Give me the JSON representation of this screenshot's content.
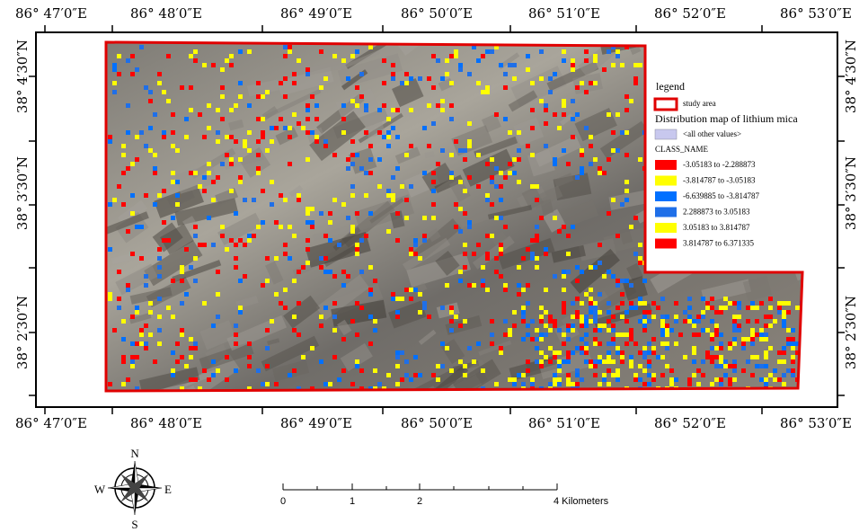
{
  "map": {
    "longitude_labels": [
      "86° 47′0″E",
      "86° 48′0″E",
      "86° 49′0″E",
      "86° 50′0″E",
      "86° 51′0″E",
      "86° 52′0″E",
      "86° 53′0″E"
    ],
    "latitude_labels": [
      "38° 4′30″N",
      "38° 3′30″N",
      "38° 2′30″N"
    ],
    "legend": {
      "title": "legend",
      "study_area": {
        "label": "study area",
        "color": "#e00000"
      },
      "layer_title": "Distribution map of lithium mica",
      "other_values": {
        "label": "<all other values>",
        "color": "#c8c8ee"
      },
      "field_name": "CLASS_NAME",
      "classes": [
        {
          "label": "-3.05183 to -2.288873",
          "color": "#ff0000"
        },
        {
          "label": "-3.814787 to -3.05183",
          "color": "#ffff00"
        },
        {
          "label": "-6.639885 to -3.814787",
          "color": "#0070ff"
        },
        {
          "label": "2.288873 to 3.05183",
          "color": "#1f6fe8"
        },
        {
          "label": "3.05183 to 3.814787",
          "color": "#ffff00"
        },
        {
          "label": "3.814787 to 6.371335",
          "color": "#ff0000"
        }
      ]
    },
    "scale_bar": {
      "labels": [
        "0",
        "1",
        "2",
        "4 Kilometers"
      ]
    },
    "north_arrow": {
      "n": "N",
      "s": "S",
      "e": "E",
      "w": "W"
    }
  }
}
